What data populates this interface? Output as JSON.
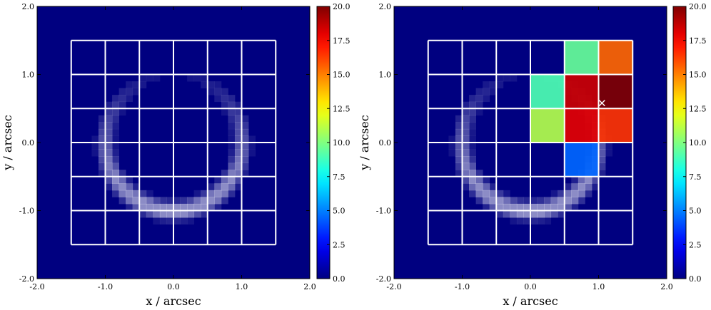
{
  "chart_data": [
    {
      "type": "heatmap",
      "title": "",
      "xlabel": "x / arcsec",
      "ylabel": "y / arcsec",
      "xlim": [
        -2.0,
        2.0
      ],
      "ylim": [
        -2.0,
        2.0
      ],
      "x_ticks": [
        "-2.0",
        "-1.0",
        "0.0",
        "1.0",
        "2.0"
      ],
      "y_ticks": [
        "-2.0",
        "-1.0",
        "0.0",
        "1.0",
        "2.0"
      ],
      "colorbar": {
        "range": [
          0.0,
          20.0
        ],
        "ticks": [
          "0.0",
          "2.5",
          "5.0",
          "7.5",
          "10.0",
          "12.5",
          "15.0",
          "17.5",
          "20.0"
        ],
        "colormap": "jet"
      },
      "background_value": 0.0,
      "ring": {
        "center": [
          0.0,
          0.0
        ],
        "radius": 1.0,
        "peak": 3.5,
        "brightest_at": [
          0.0,
          -1.0
        ]
      },
      "grid": {
        "x_edges": [
          -1.5,
          -1.0,
          -0.5,
          0.0,
          0.5,
          1.0,
          1.5
        ],
        "y_edges": [
          -1.5,
          -1.0,
          -0.5,
          0.0,
          0.5,
          1.0,
          1.5
        ],
        "color": "#ffffff"
      },
      "highlighted_cells": [],
      "marker": null
    },
    {
      "type": "heatmap",
      "title": "",
      "xlabel": "x / arcsec",
      "ylabel": "y / arcsec",
      "xlim": [
        -2.0,
        2.0
      ],
      "ylim": [
        -2.0,
        2.0
      ],
      "x_ticks": [
        "-2.0",
        "-1.0",
        "0.0",
        "1.0",
        "2.0"
      ],
      "y_ticks": [
        "-2.0",
        "-1.0",
        "0.0",
        "1.0",
        "2.0"
      ],
      "colorbar": {
        "range": [
          0.0,
          20.0
        ],
        "ticks": [
          "0.0",
          "2.5",
          "5.0",
          "7.5",
          "10.0",
          "12.5",
          "15.0",
          "17.5",
          "20.0"
        ],
        "colormap": "jet"
      },
      "background_value": 0.0,
      "ring": {
        "center": [
          0.0,
          0.0
        ],
        "radius": 1.0,
        "peak": 3.5,
        "brightest_at": [
          0.0,
          -1.0
        ]
      },
      "grid": {
        "x_edges": [
          -1.5,
          -1.0,
          -0.5,
          0.0,
          0.5,
          1.0,
          1.5
        ],
        "y_edges": [
          -1.5,
          -1.0,
          -0.5,
          0.0,
          0.5,
          1.0,
          1.5
        ],
        "color": "#ffffff"
      },
      "highlighted_cells": [
        {
          "x": [
            0.5,
            1.0
          ],
          "y": [
            1.0,
            1.5
          ],
          "value": 9.5
        },
        {
          "x": [
            1.0,
            1.5
          ],
          "y": [
            1.0,
            1.5
          ],
          "value": 15.5
        },
        {
          "x": [
            0.0,
            0.5
          ],
          "y": [
            0.5,
            1.0
          ],
          "value": 9.0
        },
        {
          "x": [
            0.5,
            1.0
          ],
          "y": [
            0.5,
            1.0
          ],
          "value": 18.5
        },
        {
          "x": [
            1.0,
            1.5
          ],
          "y": [
            0.5,
            1.0
          ],
          "value": 20.0
        },
        {
          "x": [
            0.0,
            0.5
          ],
          "y": [
            0.0,
            0.5
          ],
          "value": 11.0
        },
        {
          "x": [
            0.5,
            1.0
          ],
          "y": [
            0.0,
            0.5
          ],
          "value": 18.0
        },
        {
          "x": [
            1.0,
            1.5
          ],
          "y": [
            0.0,
            0.5
          ],
          "value": 16.5
        },
        {
          "x": [
            0.5,
            1.0
          ],
          "y": [
            -0.5,
            0.0
          ],
          "value": 4.5
        }
      ],
      "marker": {
        "x": 1.05,
        "y": 0.58,
        "symbol": "x",
        "color": "#ffffff"
      }
    }
  ]
}
